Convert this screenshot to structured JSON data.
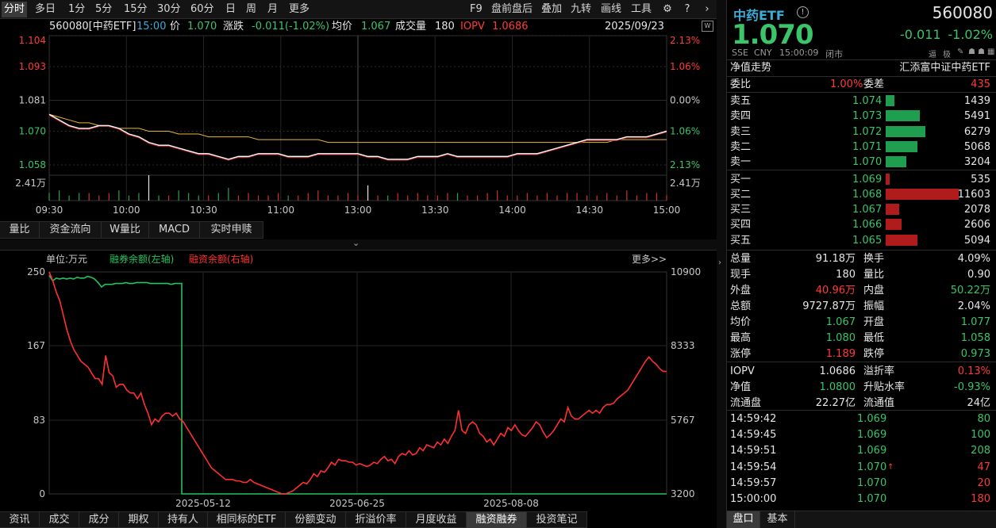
{
  "toolbar": {
    "periods": [
      "分时",
      "多日",
      "1分",
      "5分",
      "15分",
      "30分",
      "60分",
      "日",
      "周",
      "月",
      "更多"
    ],
    "right_items": [
      "F9",
      "盘前盘后",
      "叠加",
      "九转",
      "画线",
      "工具"
    ],
    "icons": [
      "gear-icon",
      "help-icon",
      "chevron-right-icon"
    ]
  },
  "caption": {
    "code_name": "560080[中药ETF]",
    "time": "15:00",
    "price_label": "价",
    "price": "1.070",
    "change_label": "涨跌",
    "change": "-0.011(-1.02%)",
    "avg_label": "均价",
    "avg": "1.067",
    "vol_label": "成交量",
    "vol": "180",
    "iopv_label": "IOPV",
    "iopv": "1.0686",
    "date": "2025/09/23"
  },
  "intraday_chart": {
    "type": "line",
    "y_labels": [
      "1.104",
      "1.093",
      "1.081",
      "1.070",
      "1.058"
    ],
    "pct_labels": [
      "2.13%",
      "1.06%",
      "0.00%",
      "1.06%",
      "2.13%"
    ],
    "vol_label": "2.41万",
    "x_labels": [
      "09:30",
      "10:00",
      "10:30",
      "11:00",
      "13:00",
      "13:30",
      "14:00",
      "14:30",
      "15:00"
    ],
    "ylim": [
      1.058,
      1.104
    ],
    "price_series": [
      1.076,
      1.074,
      1.072,
      1.071,
      1.071,
      1.072,
      1.072,
      1.071,
      1.069,
      1.068,
      1.066,
      1.065,
      1.065,
      1.064,
      1.063,
      1.062,
      1.062,
      1.061,
      1.06,
      1.061,
      1.061,
      1.062,
      1.062,
      1.062,
      1.061,
      1.061,
      1.061,
      1.062,
      1.062,
      1.062,
      1.062,
      1.062,
      1.061,
      1.061,
      1.06,
      1.06,
      1.06,
      1.061,
      1.061,
      1.061,
      1.062,
      1.061,
      1.061,
      1.061,
      1.061,
      1.061,
      1.061,
      1.062,
      1.062,
      1.062,
      1.063,
      1.064,
      1.065,
      1.066,
      1.067,
      1.067,
      1.067,
      1.067,
      1.068,
      1.068,
      1.068,
      1.069,
      1.07
    ],
    "avg_series": [
      1.076,
      1.075,
      1.074,
      1.073,
      1.073,
      1.072,
      1.072,
      1.071,
      1.071,
      1.071,
      1.07,
      1.07,
      1.07,
      1.069,
      1.069,
      1.069,
      1.068,
      1.068,
      1.068,
      1.068,
      1.068,
      1.067,
      1.067,
      1.067,
      1.067,
      1.067,
      1.067,
      1.067,
      1.066,
      1.066,
      1.066,
      1.066,
      1.066,
      1.066,
      1.066,
      1.066,
      1.066,
      1.066,
      1.066,
      1.066,
      1.066,
      1.066,
      1.066,
      1.066,
      1.066,
      1.066,
      1.066,
      1.066,
      1.066,
      1.066,
      1.066,
      1.066,
      1.066,
      1.066,
      1.066,
      1.066,
      1.066,
      1.067,
      1.067,
      1.067,
      1.067,
      1.067,
      1.067
    ],
    "volume_series": [
      0.3,
      0.4,
      0.2,
      0.3,
      0.3,
      0.2,
      0.3,
      0.4,
      0.2,
      0.3,
      1.0,
      0.2,
      0.2,
      0.4,
      0.3,
      0.2,
      0.2,
      0.3,
      0.5,
      0.2,
      0.3,
      0.2,
      0.2,
      0.3,
      0.2,
      0.2,
      0.3,
      0.4,
      0.2,
      0.2,
      0.3,
      0.2,
      0.6,
      0.2,
      0.2,
      0.3,
      0.2,
      0.3,
      0.2,
      0.2,
      0.3,
      0.3,
      0.2,
      0.2,
      0.3,
      0.4,
      0.2,
      0.2,
      0.3,
      0.2,
      0.3,
      0.2,
      0.3,
      0.3,
      0.2,
      0.2,
      0.3,
      0.2,
      0.4,
      0.2,
      0.3,
      0.3,
      0.2
    ]
  },
  "bottom_tabs": [
    "量比",
    "资金流向",
    "W量比",
    "MACD",
    "实时申赎"
  ],
  "margin_chart": {
    "type": "line",
    "unit_label": "单位:万元",
    "legend": [
      "融券余额(左轴)",
      "融资余额(右轴)"
    ],
    "more": "更多>>",
    "left_ticks": [
      "250",
      "167",
      "83",
      "0"
    ],
    "right_ticks": [
      "10900",
      "8333",
      "5767",
      "3200"
    ],
    "x_labels": [
      "2025-05-12",
      "2025-06-25",
      "2025-08-08"
    ],
    "ylim_left": [
      0,
      250
    ],
    "ylim_right": [
      3200,
      10900
    ],
    "series": [
      {
        "name": "融券余额(左轴)",
        "color": "#22c45e",
        "values": [
          246,
          240,
          243,
          242,
          243,
          242,
          243,
          242,
          244,
          243,
          243,
          245,
          244,
          242,
          238,
          233,
          236,
          236,
          236,
          237,
          237,
          237,
          238,
          237,
          237,
          238,
          238,
          238,
          238,
          237,
          237,
          237,
          237,
          237,
          237,
          236,
          237,
          237,
          237,
          0,
          0,
          0,
          0,
          0,
          0,
          0,
          0,
          0,
          0,
          0,
          0,
          0,
          0,
          0,
          0,
          0,
          0,
          0,
          0,
          0,
          0,
          0,
          0,
          0,
          0,
          0,
          0,
          0,
          0,
          0,
          0,
          0,
          0,
          0,
          0,
          0,
          0,
          0,
          0,
          0,
          0,
          0,
          0,
          0,
          0,
          0,
          0,
          0,
          0,
          0,
          0,
          0,
          0,
          0,
          0,
          0,
          0,
          0,
          0,
          0,
          0,
          0,
          0,
          0,
          0,
          0,
          0,
          0,
          0,
          0,
          0,
          0,
          0,
          0,
          0,
          0,
          0,
          0,
          0,
          0,
          0,
          0,
          0,
          0,
          0,
          0,
          0,
          0,
          0,
          0,
          0,
          0,
          0,
          0,
          0,
          0,
          0,
          0,
          0,
          0,
          0,
          0,
          0,
          0,
          0,
          0,
          0,
          0,
          0,
          0,
          0,
          0,
          0,
          0,
          0,
          0,
          0,
          0,
          0,
          0,
          0,
          0,
          0,
          0,
          0,
          0,
          0,
          0,
          0,
          0,
          0,
          0,
          0,
          0,
          0,
          0,
          0,
          0
        ]
      },
      {
        "name": "融资余额(右轴)",
        "color": "#ff3030",
        "values": [
          10900,
          10600,
          10200,
          9900,
          9400,
          8900,
          8500,
          8200,
          8000,
          7800,
          7700,
          7600,
          7400,
          7200,
          7200,
          7000,
          8000,
          7400,
          7300,
          6900,
          7000,
          7000,
          6800,
          6700,
          6700,
          6500,
          6700,
          6300,
          6000,
          5600,
          5800,
          5700,
          5900,
          6000,
          6000,
          5900,
          6000,
          5800,
          5700,
          5500,
          5300,
          5100,
          4900,
          4700,
          4500,
          4300,
          4100,
          4000,
          3900,
          3800,
          3700,
          3700,
          3700,
          3650,
          3650,
          3600,
          3600,
          3700,
          3600,
          3550,
          3500,
          3450,
          3400,
          3350,
          3300,
          3250,
          3200,
          3200,
          3250,
          3300,
          3400,
          3500,
          3600,
          3550,
          3700,
          3900,
          3800,
          4000,
          3950,
          4100,
          4300,
          4200,
          4400,
          4350,
          4350,
          4300,
          4300,
          4200,
          4250,
          4200,
          4150,
          4200,
          4300,
          4250,
          4400,
          4500,
          4350,
          4400,
          4250,
          4500,
          4600,
          4550,
          4700,
          4550,
          4600,
          4800,
          4700,
          4900,
          4850,
          4800,
          5000,
          4900,
          5100,
          4950,
          5200,
          5400,
          6100,
          5400,
          5300,
          5600,
          5700,
          5600,
          5300,
          5200,
          5000,
          5100,
          4900,
          5100,
          5300,
          5200,
          5500,
          5400,
          5600,
          5400,
          5250,
          5200,
          5350,
          5500,
          5700,
          5600,
          5350,
          5150,
          5250,
          5400,
          5600,
          5800,
          5700,
          6200,
          5900,
          5800,
          5800,
          5900,
          6000,
          6100,
          6000,
          6100,
          6000,
          6200,
          6300,
          6300,
          6350,
          6500,
          6600,
          6700,
          6800,
          7000,
          7200,
          7400,
          7600,
          7800,
          7950,
          7800,
          7700,
          7550,
          7450,
          7450
        ]
      }
    ]
  },
  "bottom_nav": [
    "资讯",
    "成交",
    "成分",
    "期权",
    "持有人",
    "相同标的ETF",
    "份额变动",
    "折溢价率",
    "月度收益",
    "融资融券",
    "投资笔记"
  ],
  "quote": {
    "name": "中药ETF",
    "code": "560080",
    "price": "1.070",
    "chg": "-0.011",
    "pct": "-1.02%",
    "meta": [
      "SSE",
      "CNY",
      "15:00:09",
      "闭市"
    ],
    "nav_title": "净值走势",
    "fund_name": "汇添富中证中药ETF",
    "wb_label": "委比",
    "wb": "1.00%",
    "wc_label": "委差",
    "wc": "435",
    "asks": [
      {
        "label": "卖五",
        "price": "1.074",
        "vol": "1439",
        "share": 0.12
      },
      {
        "label": "卖四",
        "price": "1.073",
        "vol": "5491",
        "share": 0.47
      },
      {
        "label": "卖三",
        "price": "1.072",
        "vol": "6279",
        "share": 0.54
      },
      {
        "label": "卖二",
        "price": "1.071",
        "vol": "5068",
        "share": 0.44
      },
      {
        "label": "卖一",
        "price": "1.070",
        "vol": "3204",
        "share": 0.28
      }
    ],
    "bids": [
      {
        "label": "买一",
        "price": "1.069",
        "vol": "535",
        "share": 0.05
      },
      {
        "label": "买二",
        "price": "1.068",
        "vol": "11603",
        "share": 1.0
      },
      {
        "label": "买三",
        "price": "1.067",
        "vol": "2078",
        "share": 0.18
      },
      {
        "label": "买四",
        "price": "1.066",
        "vol": "2606",
        "share": 0.22
      },
      {
        "label": "买五",
        "price": "1.065",
        "vol": "5094",
        "share": 0.44
      }
    ],
    "stats": [
      [
        "总量",
        "91.18万",
        "w",
        "换手",
        "4.09%",
        "w"
      ],
      [
        "现手",
        "180",
        "w",
        "量比",
        "0.90",
        "w"
      ],
      [
        "外盘",
        "40.96万",
        "r",
        "内盘",
        "50.22万",
        "g"
      ],
      [
        "总额",
        "9727.87万",
        "w",
        "振幅",
        "2.04%",
        "w"
      ],
      [
        "均价",
        "1.067",
        "g",
        "开盘",
        "1.077",
        "g"
      ],
      [
        "最高",
        "1.080",
        "g",
        "最低",
        "1.058",
        "g"
      ],
      [
        "涨停",
        "1.189",
        "r",
        "跌停",
        "0.973",
        "g"
      ],
      [
        "IOPV",
        "1.0686",
        "w",
        "溢折率",
        "0.13%",
        "r"
      ],
      [
        "净值",
        "1.0800",
        "g",
        "升贴水率",
        "-0.93%",
        "g"
      ],
      [
        "流通盘",
        "22.27亿",
        "w",
        "流通值",
        "24亿",
        "w"
      ]
    ],
    "ticks": [
      {
        "time": "14:59:42",
        "price": "1.069",
        "vol": "80",
        "dir": "g"
      },
      {
        "time": "14:59:45",
        "price": "1.069",
        "vol": "100",
        "dir": "g"
      },
      {
        "time": "14:59:51",
        "price": "1.069",
        "vol": "208",
        "dir": "g"
      },
      {
        "time": "14:59:54",
        "price": "1.070",
        "vol": "47",
        "dir": "r"
      },
      {
        "time": "14:59:57",
        "price": "1.070",
        "vol": "20",
        "dir": "r"
      },
      {
        "time": "15:00:00",
        "price": "1.070",
        "vol": "180",
        "dir": "r"
      }
    ],
    "tabs": [
      "盘口",
      "基本"
    ],
    "arrow": "↑",
    "tiny_icons": [
      "逼",
      "极",
      "✎",
      "☗",
      "☗",
      "▦"
    ]
  }
}
